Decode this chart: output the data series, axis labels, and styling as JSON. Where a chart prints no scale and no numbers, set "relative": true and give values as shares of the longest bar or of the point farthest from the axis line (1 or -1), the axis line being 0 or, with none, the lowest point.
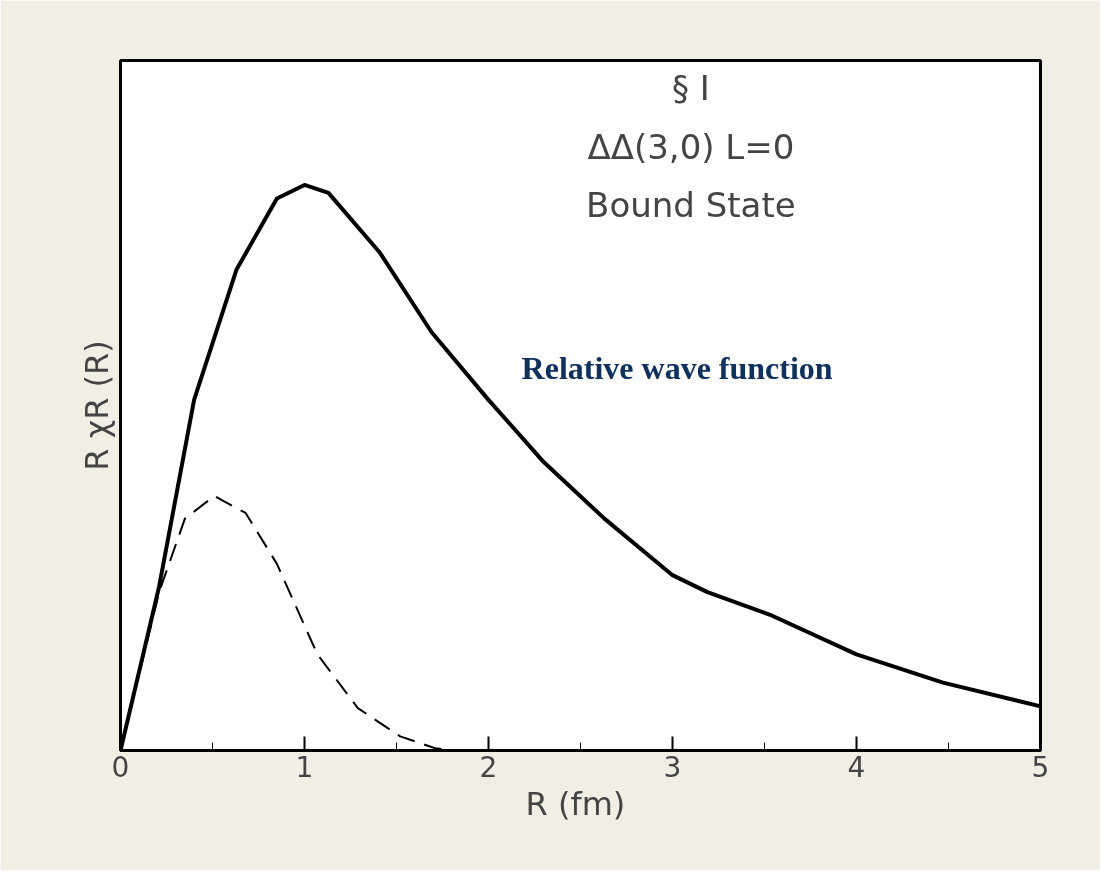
{
  "chart_data": {
    "type": "line",
    "relative": true,
    "xlabel": "R  (fm)",
    "ylabel": "R χR (R)",
    "xlim": [
      0,
      5
    ],
    "xticks": [
      0,
      1,
      2,
      3,
      4,
      5
    ],
    "grid": false,
    "series": [
      {
        "color": "#000000",
        "line_style": "solid",
        "x": [
          0,
          0.21,
          0.4,
          0.63,
          0.85,
          1.0,
          1.13,
          1.41,
          1.69,
          2.0,
          2.3,
          2.63,
          3.0,
          3.19,
          3.53,
          4.0,
          4.47,
          5.0
        ],
        "values": [
          0,
          0.29,
          0.62,
          0.85,
          0.976,
          1,
          0.986,
          0.88,
          0.74,
          0.62,
          0.51,
          0.41,
          0.31,
          0.28,
          0.24,
          0.17,
          0.12,
          0.078
        ]
      },
      {
        "color": "#000000",
        "line_style": "dashed",
        "x": [
          0,
          0.21,
          0.35,
          0.51,
          0.68,
          0.85,
          1.07,
          1.29,
          1.52,
          1.71,
          1.8
        ],
        "values": [
          0,
          0.28,
          0.41,
          0.45,
          0.42,
          0.33,
          0.17,
          0.075,
          0.025,
          0.004,
          0
        ]
      }
    ],
    "annotations": [
      "§ I",
      "ΔΔ(3,0) L=0",
      "Bound State",
      "Relative wave function"
    ]
  }
}
